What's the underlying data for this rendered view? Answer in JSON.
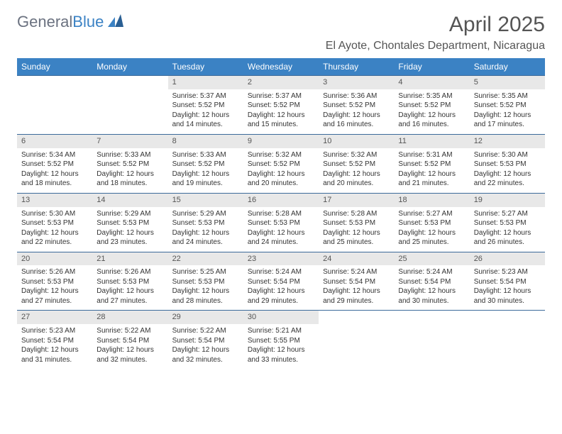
{
  "brand": {
    "part1": "General",
    "part2": "Blue"
  },
  "title": "April 2025",
  "location": "El Ayote, Chontales Department, Nicaragua",
  "colors": {
    "header_bg": "#3b82c4",
    "header_text": "#ffffff",
    "daynum_bg": "#e8e8e8",
    "week_border": "#3b6a9a",
    "text": "#333333",
    "logo_gray": "#6b7280"
  },
  "fonts": {
    "title_size": 30,
    "location_size": 16,
    "day_header_size": 12,
    "daynum_size": 11,
    "body_size": 10
  },
  "day_headers": [
    "Sunday",
    "Monday",
    "Tuesday",
    "Wednesday",
    "Thursday",
    "Friday",
    "Saturday"
  ],
  "weeks": [
    [
      null,
      null,
      {
        "n": "1",
        "sr": "Sunrise: 5:37 AM",
        "ss": "Sunset: 5:52 PM",
        "dl": "Daylight: 12 hours and 14 minutes."
      },
      {
        "n": "2",
        "sr": "Sunrise: 5:37 AM",
        "ss": "Sunset: 5:52 PM",
        "dl": "Daylight: 12 hours and 15 minutes."
      },
      {
        "n": "3",
        "sr": "Sunrise: 5:36 AM",
        "ss": "Sunset: 5:52 PM",
        "dl": "Daylight: 12 hours and 16 minutes."
      },
      {
        "n": "4",
        "sr": "Sunrise: 5:35 AM",
        "ss": "Sunset: 5:52 PM",
        "dl": "Daylight: 12 hours and 16 minutes."
      },
      {
        "n": "5",
        "sr": "Sunrise: 5:35 AM",
        "ss": "Sunset: 5:52 PM",
        "dl": "Daylight: 12 hours and 17 minutes."
      }
    ],
    [
      {
        "n": "6",
        "sr": "Sunrise: 5:34 AM",
        "ss": "Sunset: 5:52 PM",
        "dl": "Daylight: 12 hours and 18 minutes."
      },
      {
        "n": "7",
        "sr": "Sunrise: 5:33 AM",
        "ss": "Sunset: 5:52 PM",
        "dl": "Daylight: 12 hours and 18 minutes."
      },
      {
        "n": "8",
        "sr": "Sunrise: 5:33 AM",
        "ss": "Sunset: 5:52 PM",
        "dl": "Daylight: 12 hours and 19 minutes."
      },
      {
        "n": "9",
        "sr": "Sunrise: 5:32 AM",
        "ss": "Sunset: 5:52 PM",
        "dl": "Daylight: 12 hours and 20 minutes."
      },
      {
        "n": "10",
        "sr": "Sunrise: 5:32 AM",
        "ss": "Sunset: 5:52 PM",
        "dl": "Daylight: 12 hours and 20 minutes."
      },
      {
        "n": "11",
        "sr": "Sunrise: 5:31 AM",
        "ss": "Sunset: 5:52 PM",
        "dl": "Daylight: 12 hours and 21 minutes."
      },
      {
        "n": "12",
        "sr": "Sunrise: 5:30 AM",
        "ss": "Sunset: 5:53 PM",
        "dl": "Daylight: 12 hours and 22 minutes."
      }
    ],
    [
      {
        "n": "13",
        "sr": "Sunrise: 5:30 AM",
        "ss": "Sunset: 5:53 PM",
        "dl": "Daylight: 12 hours and 22 minutes."
      },
      {
        "n": "14",
        "sr": "Sunrise: 5:29 AM",
        "ss": "Sunset: 5:53 PM",
        "dl": "Daylight: 12 hours and 23 minutes."
      },
      {
        "n": "15",
        "sr": "Sunrise: 5:29 AM",
        "ss": "Sunset: 5:53 PM",
        "dl": "Daylight: 12 hours and 24 minutes."
      },
      {
        "n": "16",
        "sr": "Sunrise: 5:28 AM",
        "ss": "Sunset: 5:53 PM",
        "dl": "Daylight: 12 hours and 24 minutes."
      },
      {
        "n": "17",
        "sr": "Sunrise: 5:28 AM",
        "ss": "Sunset: 5:53 PM",
        "dl": "Daylight: 12 hours and 25 minutes."
      },
      {
        "n": "18",
        "sr": "Sunrise: 5:27 AM",
        "ss": "Sunset: 5:53 PM",
        "dl": "Daylight: 12 hours and 25 minutes."
      },
      {
        "n": "19",
        "sr": "Sunrise: 5:27 AM",
        "ss": "Sunset: 5:53 PM",
        "dl": "Daylight: 12 hours and 26 minutes."
      }
    ],
    [
      {
        "n": "20",
        "sr": "Sunrise: 5:26 AM",
        "ss": "Sunset: 5:53 PM",
        "dl": "Daylight: 12 hours and 27 minutes."
      },
      {
        "n": "21",
        "sr": "Sunrise: 5:26 AM",
        "ss": "Sunset: 5:53 PM",
        "dl": "Daylight: 12 hours and 27 minutes."
      },
      {
        "n": "22",
        "sr": "Sunrise: 5:25 AM",
        "ss": "Sunset: 5:53 PM",
        "dl": "Daylight: 12 hours and 28 minutes."
      },
      {
        "n": "23",
        "sr": "Sunrise: 5:24 AM",
        "ss": "Sunset: 5:54 PM",
        "dl": "Daylight: 12 hours and 29 minutes."
      },
      {
        "n": "24",
        "sr": "Sunrise: 5:24 AM",
        "ss": "Sunset: 5:54 PM",
        "dl": "Daylight: 12 hours and 29 minutes."
      },
      {
        "n": "25",
        "sr": "Sunrise: 5:24 AM",
        "ss": "Sunset: 5:54 PM",
        "dl": "Daylight: 12 hours and 30 minutes."
      },
      {
        "n": "26",
        "sr": "Sunrise: 5:23 AM",
        "ss": "Sunset: 5:54 PM",
        "dl": "Daylight: 12 hours and 30 minutes."
      }
    ],
    [
      {
        "n": "27",
        "sr": "Sunrise: 5:23 AM",
        "ss": "Sunset: 5:54 PM",
        "dl": "Daylight: 12 hours and 31 minutes."
      },
      {
        "n": "28",
        "sr": "Sunrise: 5:22 AM",
        "ss": "Sunset: 5:54 PM",
        "dl": "Daylight: 12 hours and 32 minutes."
      },
      {
        "n": "29",
        "sr": "Sunrise: 5:22 AM",
        "ss": "Sunset: 5:54 PM",
        "dl": "Daylight: 12 hours and 32 minutes."
      },
      {
        "n": "30",
        "sr": "Sunrise: 5:21 AM",
        "ss": "Sunset: 5:55 PM",
        "dl": "Daylight: 12 hours and 33 minutes."
      },
      null,
      null,
      null
    ]
  ]
}
